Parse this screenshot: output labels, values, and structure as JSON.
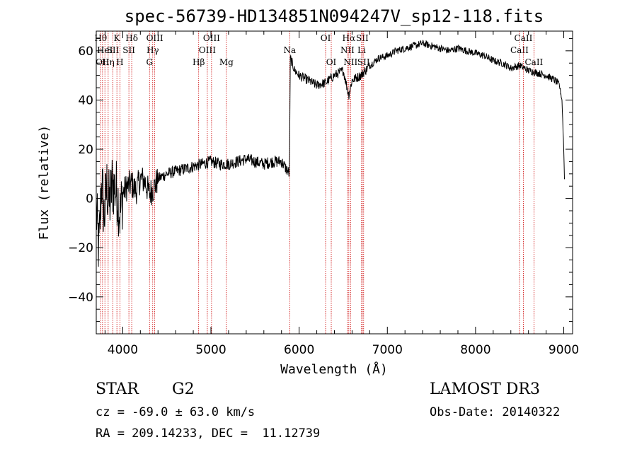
{
  "chart_data": {
    "type": "line",
    "title": "spec-56739-HD134851N094247V_sp12-118.fits",
    "xlabel": "Wavelength (Å)",
    "ylabel": "Flux (relative)",
    "xlim": [
      3700,
      9100
    ],
    "ylim": [
      -55,
      68
    ],
    "xticks": [
      4000,
      5000,
      6000,
      7000,
      8000,
      9000
    ],
    "yticks": [
      -40,
      -20,
      0,
      20,
      40,
      60
    ],
    "grid": false,
    "legend": "none",
    "colors": {
      "spectrum": "#000000",
      "lines": "#cc0000"
    },
    "series": [
      {
        "x": [
          3700,
          3730,
          3760,
          3790,
          3820,
          3850,
          3880,
          3910,
          3940,
          3970,
          4000,
          4050,
          4100,
          4150,
          4200,
          4250,
          4300,
          4350,
          4400,
          4450,
          4500,
          4600,
          4700,
          4800,
          4900,
          5000,
          5100,
          5200,
          5300,
          5400,
          5500,
          5600,
          5700,
          5800,
          5890,
          5900,
          5950,
          6000,
          6100,
          6200,
          6300,
          6400,
          6500,
          6563,
          6600,
          6700,
          6800,
          6900,
          7000,
          7100,
          7200,
          7300,
          7400,
          7500,
          7600,
          7700,
          7800,
          7900,
          8000,
          8100,
          8200,
          8300,
          8400,
          8500,
          8600,
          8700,
          8800,
          8850,
          8900,
          8950,
          8980,
          9000,
          9010
        ],
        "y": [
          -5,
          -22,
          8,
          -8,
          5,
          -3,
          6,
          4,
          2,
          -7,
          2,
          5,
          6,
          3,
          8,
          7,
          2,
          4,
          8,
          9,
          10,
          11,
          12,
          13,
          14,
          15,
          14,
          14,
          15,
          16,
          15,
          14,
          15,
          15,
          10,
          57,
          52,
          50,
          48,
          46,
          47,
          50,
          52,
          42,
          48,
          50,
          54,
          57,
          58,
          60,
          61,
          62,
          63,
          62,
          61,
          60,
          61,
          60,
          59,
          58,
          56,
          55,
          53,
          54,
          52,
          51,
          50,
          49,
          48,
          46,
          40,
          20,
          5
        ]
      }
    ],
    "lines": [
      {
        "x": 3750,
        "label": "Hθ",
        "row": 0
      },
      {
        "x": 3771,
        "label": "OII",
        "row": 2
      },
      {
        "x": 3798,
        "label": "HeI",
        "row": 1
      },
      {
        "x": 3835,
        "label": "Hη",
        "row": 2
      },
      {
        "x": 3889,
        "label": "SII",
        "row": 1
      },
      {
        "x": 3934,
        "label": "K",
        "row": 0
      },
      {
        "x": 3968,
        "label": "H",
        "row": 2
      },
      {
        "x": 4070,
        "label": "SII",
        "row": 1
      },
      {
        "x": 4102,
        "label": "Hδ",
        "row": 0
      },
      {
        "x": 4304,
        "label": "G",
        "row": 2
      },
      {
        "x": 4340,
        "label": "Hγ",
        "row": 1
      },
      {
        "x": 4363,
        "label": "OIII",
        "row": 0
      },
      {
        "x": 4861,
        "label": "Hβ",
        "row": 2
      },
      {
        "x": 4959,
        "label": "OIII",
        "row": 1
      },
      {
        "x": 5007,
        "label": "OIII",
        "row": 0
      },
      {
        "x": 5175,
        "label": "Mg",
        "row": 2
      },
      {
        "x": 5893,
        "label": "Na",
        "row": 1
      },
      {
        "x": 6300,
        "label": "OI",
        "row": 0
      },
      {
        "x": 6364,
        "label": "OI",
        "row": 2
      },
      {
        "x": 6548,
        "label": "NII",
        "row": 1
      },
      {
        "x": 6563,
        "label": "Hα",
        "row": 0
      },
      {
        "x": 6583,
        "label": "NII",
        "row": 2
      },
      {
        "x": 6708,
        "label": "Li",
        "row": 1
      },
      {
        "x": 6716,
        "label": "SII",
        "row": 0
      },
      {
        "x": 6731,
        "label": "SII",
        "row": 2
      },
      {
        "x": 8498,
        "label": "CaII",
        "row": 1
      },
      {
        "x": 8542,
        "label": "CaII",
        "row": 0
      },
      {
        "x": 8662,
        "label": "CaII",
        "row": 2
      }
    ]
  },
  "info": {
    "class_label": "STAR",
    "subclass": "G2",
    "survey": "LAMOST DR3",
    "redshift": "cz = -69.0 ± 63.0 km/s",
    "obs_date": "Obs-Date: 20140322",
    "coords": "RA = 209.14233, DEC =  11.12739"
  }
}
